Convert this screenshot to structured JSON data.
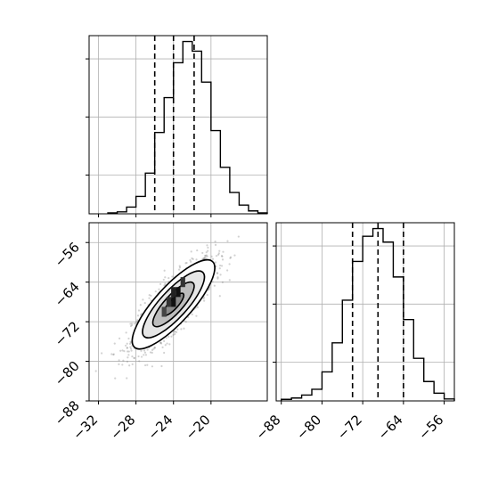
{
  "chart_data": [
    {
      "panel": "marginal-x",
      "type": "histogram",
      "xlim": [
        -33,
        -14
      ],
      "bin_edges": [
        -31,
        -30,
        -29,
        -28,
        -27,
        -26,
        -25,
        -24,
        -23,
        -22,
        -21,
        -20,
        -19,
        -18,
        -17,
        -16,
        -15,
        -14
      ],
      "counts": [
        5,
        10,
        35,
        90,
        210,
        420,
        600,
        780,
        890,
        840,
        680,
        430,
        240,
        110,
        45,
        15,
        5
      ],
      "ylim": [
        0,
        920
      ],
      "quantiles": [
        -26.0,
        -24.0,
        -21.8
      ],
      "y_ticks": [
        200,
        500,
        800
      ],
      "grid": true
    },
    {
      "panel": "joint",
      "type": "scatter-contour",
      "xlim": [
        -33,
        -14
      ],
      "ylim": [
        -88,
        -52
      ],
      "x_ticks": [
        "-32",
        "-28",
        "-24",
        "-20"
      ],
      "y_ticks": [
        "-56",
        "-64",
        "-72",
        "-80",
        "-88"
      ],
      "grid": true,
      "contour_levels": [
        "0.5",
        "1.0",
        "1.5",
        "2.0"
      ],
      "density_blocks": [
        {
          "x": -24.5,
          "y": -68,
          "shade": "#333333"
        },
        {
          "x": -24.0,
          "y": -68,
          "shade": "#111111"
        },
        {
          "x": -23.5,
          "y": -66,
          "shade": "#111111"
        },
        {
          "x": -24.0,
          "y": -66,
          "shade": "#222222"
        },
        {
          "x": -25.0,
          "y": -70,
          "shade": "#444444"
        },
        {
          "x": -23.0,
          "y": -64,
          "shade": "#333333"
        }
      ]
    },
    {
      "panel": "marginal-y",
      "type": "histogram",
      "xlim": [
        -89,
        -54
      ],
      "x_ticks": [
        "-88",
        "-80",
        "-72",
        "-64",
        "-56"
      ],
      "bin_edges": [
        -88,
        -86,
        -84,
        -82,
        -80,
        -78,
        -76,
        -74,
        -72,
        -70,
        -68,
        -66,
        -64,
        -62,
        -60,
        -58,
        -56,
        -54
      ],
      "counts": [
        8,
        15,
        30,
        60,
        150,
        300,
        520,
        720,
        850,
        890,
        820,
        640,
        420,
        220,
        100,
        40,
        10
      ],
      "ylim": [
        0,
        920
      ],
      "quantiles": [
        -74.0,
        -69.0,
        -64.0
      ],
      "y_ticks": [
        200,
        500,
        800
      ],
      "grid": true
    }
  ]
}
